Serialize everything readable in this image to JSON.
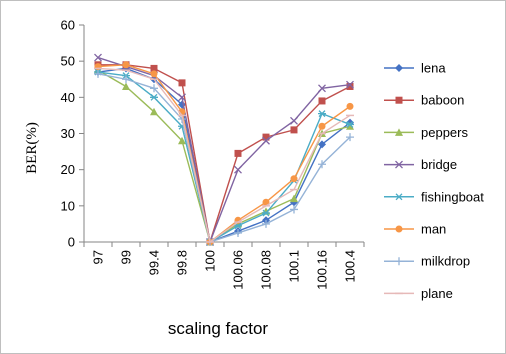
{
  "chart_data": {
    "type": "line",
    "title": "",
    "xlabel": "scaling factor",
    "ylabel": "BER(%)",
    "ylim": [
      0,
      60
    ],
    "yticks": [
      0,
      10,
      20,
      30,
      40,
      50,
      60
    ],
    "categories": [
      "97",
      "99",
      "99.4",
      "99.8",
      "100",
      "100.06",
      "100.08",
      "100.1",
      "100.16",
      "100.4"
    ],
    "grid": false,
    "legend_position": "right",
    "series": [
      {
        "name": "lena",
        "color": "#4472C4",
        "marker": "diamond",
        "values": [
          47,
          48,
          45,
          38,
          0,
          3,
          6,
          11,
          27,
          33
        ]
      },
      {
        "name": "baboon",
        "color": "#C0504D",
        "marker": "square",
        "values": [
          49,
          49,
          48,
          44,
          0,
          24.5,
          29,
          31,
          39,
          43
        ]
      },
      {
        "name": "peppers",
        "color": "#9BBB59",
        "marker": "triangle",
        "values": [
          47.5,
          43,
          36,
          28,
          0,
          5,
          8.5,
          12,
          30,
          32
        ]
      },
      {
        "name": "bridge",
        "color": "#8064A2",
        "marker": "x",
        "values": [
          51,
          48.5,
          46,
          40,
          0,
          20,
          28,
          33.5,
          42.5,
          43.5
        ]
      },
      {
        "name": "fishingboat",
        "color": "#4BACC6",
        "marker": "star",
        "values": [
          47,
          46,
          40,
          32,
          0,
          4.5,
          8,
          17,
          35.5,
          32.5
        ]
      },
      {
        "name": "man",
        "color": "#F79646",
        "marker": "circle",
        "values": [
          48.5,
          49,
          46.5,
          36,
          0,
          6,
          11,
          17.5,
          32,
          37.5
        ]
      },
      {
        "name": "milkdrop",
        "color": "#95B3D7",
        "marker": "plus",
        "values": [
          46.5,
          45,
          42.5,
          34,
          0,
          2.5,
          5,
          9,
          21.5,
          29
        ]
      },
      {
        "name": "plane",
        "color": "#E6B9B8",
        "marker": "dash",
        "values": [
          48,
          47.5,
          45,
          35,
          0,
          5.5,
          10,
          14.5,
          30,
          35
        ]
      }
    ]
  }
}
